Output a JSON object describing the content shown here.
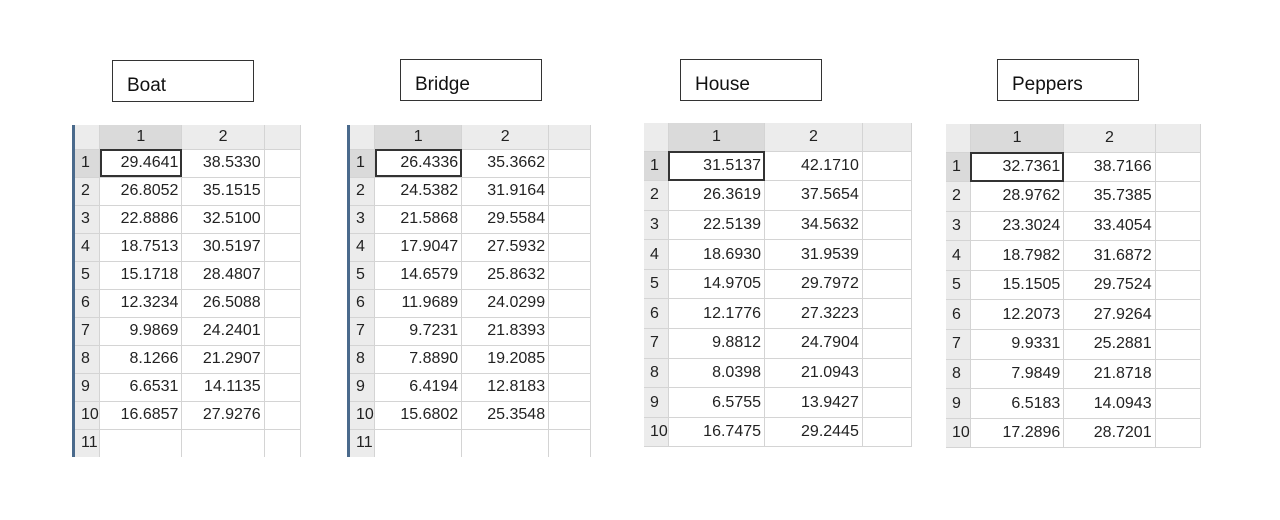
{
  "panels": [
    {
      "label": "Boat",
      "col_headers": [
        "1",
        "2"
      ],
      "rows": [
        {
          "n": "1",
          "c1": "29.4641",
          "c2": "38.5330"
        },
        {
          "n": "2",
          "c1": "26.8052",
          "c2": "35.1515"
        },
        {
          "n": "3",
          "c1": "22.8886",
          "c2": "32.5100"
        },
        {
          "n": "4",
          "c1": "18.7513",
          "c2": "30.5197"
        },
        {
          "n": "5",
          "c1": "15.1718",
          "c2": "28.4807"
        },
        {
          "n": "6",
          "c1": "12.3234",
          "c2": "26.5088"
        },
        {
          "n": "7",
          "c1": "9.9869",
          "c2": "24.2401"
        },
        {
          "n": "8",
          "c1": "8.1266",
          "c2": "21.2907"
        },
        {
          "n": "9",
          "c1": "6.6531",
          "c2": "14.1135"
        },
        {
          "n": "10",
          "c1": "16.6857",
          "c2": "27.9276"
        },
        {
          "n": "11",
          "c1": "",
          "c2": ""
        }
      ]
    },
    {
      "label": "Bridge",
      "col_headers": [
        "1",
        "2"
      ],
      "rows": [
        {
          "n": "1",
          "c1": "26.4336",
          "c2": "35.3662"
        },
        {
          "n": "2",
          "c1": "24.5382",
          "c2": "31.9164"
        },
        {
          "n": "3",
          "c1": "21.5868",
          "c2": "29.5584"
        },
        {
          "n": "4",
          "c1": "17.9047",
          "c2": "27.5932"
        },
        {
          "n": "5",
          "c1": "14.6579",
          "c2": "25.8632"
        },
        {
          "n": "6",
          "c1": "11.9689",
          "c2": "24.0299"
        },
        {
          "n": "7",
          "c1": "9.7231",
          "c2": "21.8393"
        },
        {
          "n": "8",
          "c1": "7.8890",
          "c2": "19.2085"
        },
        {
          "n": "9",
          "c1": "6.4194",
          "c2": "12.8183"
        },
        {
          "n": "10",
          "c1": "15.6802",
          "c2": "25.3548"
        },
        {
          "n": "11",
          "c1": "",
          "c2": ""
        }
      ]
    },
    {
      "label": "House",
      "col_headers": [
        "1",
        "2"
      ],
      "rows": [
        {
          "n": "1",
          "c1": "31.5137",
          "c2": "42.1710"
        },
        {
          "n": "2",
          "c1": "26.3619",
          "c2": "37.5654"
        },
        {
          "n": "3",
          "c1": "22.5139",
          "c2": "34.5632"
        },
        {
          "n": "4",
          "c1": "18.6930",
          "c2": "31.9539"
        },
        {
          "n": "5",
          "c1": "14.9705",
          "c2": "29.7972"
        },
        {
          "n": "6",
          "c1": "12.1776",
          "c2": "27.3223"
        },
        {
          "n": "7",
          "c1": "9.8812",
          "c2": "24.7904"
        },
        {
          "n": "8",
          "c1": "8.0398",
          "c2": "21.0943"
        },
        {
          "n": "9",
          "c1": "6.5755",
          "c2": "13.9427"
        },
        {
          "n": "10",
          "c1": "16.7475",
          "c2": "29.2445"
        }
      ]
    },
    {
      "label": "Peppers",
      "col_headers": [
        "1",
        "2"
      ],
      "rows": [
        {
          "n": "1",
          "c1": "32.7361",
          "c2": "38.7166"
        },
        {
          "n": "2",
          "c1": "28.9762",
          "c2": "35.7385"
        },
        {
          "n": "3",
          "c1": "23.3024",
          "c2": "33.4054"
        },
        {
          "n": "4",
          "c1": "18.7982",
          "c2": "31.6872"
        },
        {
          "n": "5",
          "c1": "15.1505",
          "c2": "29.7524"
        },
        {
          "n": "6",
          "c1": "12.2073",
          "c2": "27.9264"
        },
        {
          "n": "7",
          "c1": "9.9331",
          "c2": "25.2881"
        },
        {
          "n": "8",
          "c1": "7.9849",
          "c2": "21.8718"
        },
        {
          "n": "9",
          "c1": "6.5183",
          "c2": "14.0943"
        },
        {
          "n": "10",
          "c1": "17.2896",
          "c2": "28.7201"
        }
      ]
    }
  ]
}
